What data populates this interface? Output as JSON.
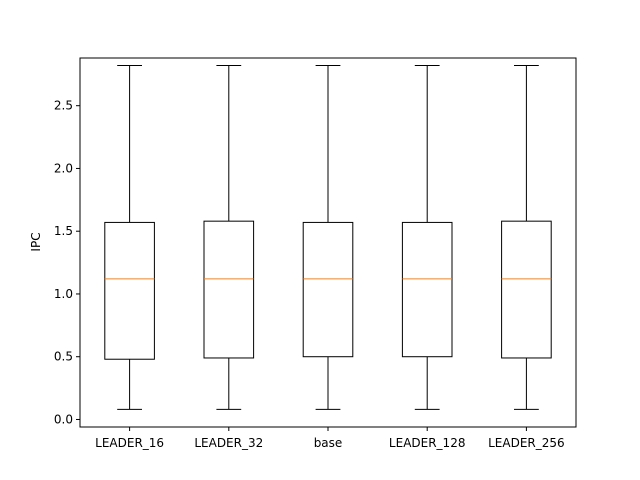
{
  "chart_data": {
    "type": "box",
    "ylabel": "IPC",
    "ylim": [
      -0.06,
      2.88
    ],
    "yticks": [
      0.0,
      0.5,
      1.0,
      1.5,
      2.0,
      2.5
    ],
    "ytick_labels": [
      "0.0",
      "0.5",
      "1.0",
      "1.5",
      "2.0",
      "2.5"
    ],
    "categories": [
      "LEADER_16",
      "LEADER_32",
      "base",
      "LEADER_128",
      "LEADER_256"
    ],
    "boxes": [
      {
        "whislo": 0.08,
        "q1": 0.48,
        "med": 1.12,
        "q3": 1.57,
        "whishi": 2.82
      },
      {
        "whislo": 0.08,
        "q1": 0.49,
        "med": 1.12,
        "q3": 1.58,
        "whishi": 2.82
      },
      {
        "whislo": 0.08,
        "q1": 0.5,
        "med": 1.12,
        "q3": 1.57,
        "whishi": 2.82
      },
      {
        "whislo": 0.08,
        "q1": 0.5,
        "med": 1.12,
        "q3": 1.57,
        "whishi": 2.82
      },
      {
        "whislo": 0.08,
        "q1": 0.49,
        "med": 1.12,
        "q3": 1.58,
        "whishi": 2.82
      }
    ],
    "colors": {
      "box": "#000000",
      "median": "#ff7f0e"
    }
  }
}
